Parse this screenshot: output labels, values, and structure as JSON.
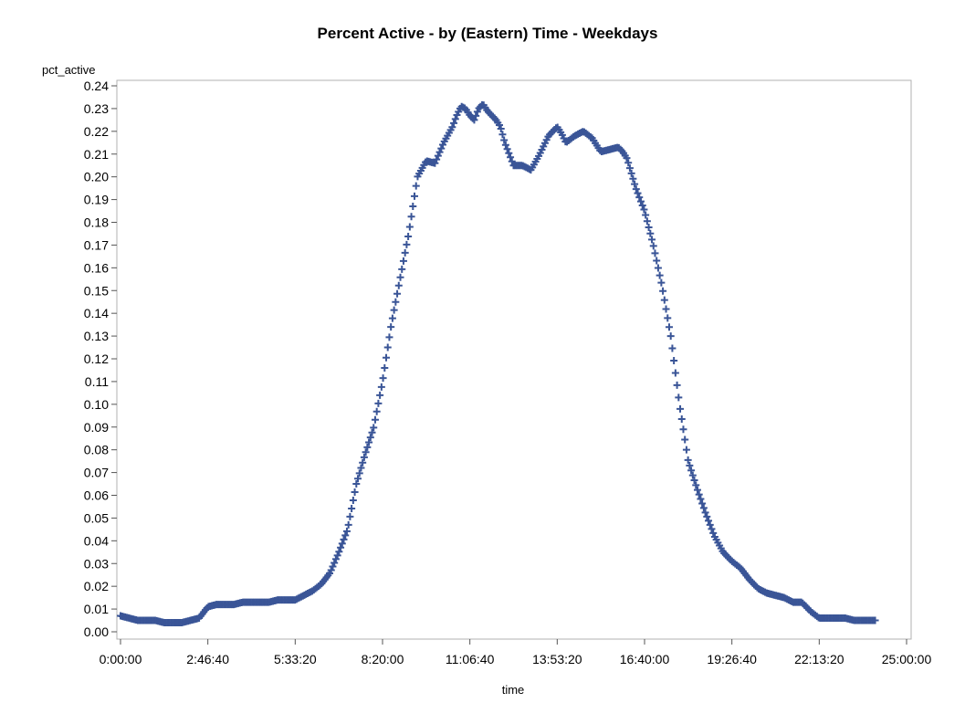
{
  "chart_data": {
    "type": "scatter",
    "title": "Percent Active - by (Eastern) Time - Weekdays",
    "xlabel": "time",
    "ylabel": "pct_active",
    "xlim": [
      0,
      90000
    ],
    "ylim": [
      0,
      0.24
    ],
    "x_ticks": [
      {
        "value": 0,
        "label": "0:00:00"
      },
      {
        "value": 10000,
        "label": "2:46:40"
      },
      {
        "value": 20000,
        "label": "5:33:20"
      },
      {
        "value": 30000,
        "label": "8:20:00"
      },
      {
        "value": 40000,
        "label": "11:06:40"
      },
      {
        "value": 50000,
        "label": "13:53:20"
      },
      {
        "value": 60000,
        "label": "16:40:00"
      },
      {
        "value": 70000,
        "label": "19:26:40"
      },
      {
        "value": 80000,
        "label": "22:13:20"
      },
      {
        "value": 90000,
        "label": "25:00:00"
      }
    ],
    "y_ticks": [
      "0.00",
      "0.01",
      "0.02",
      "0.03",
      "0.04",
      "0.05",
      "0.06",
      "0.07",
      "0.08",
      "0.09",
      "0.10",
      "0.11",
      "0.12",
      "0.13",
      "0.14",
      "0.15",
      "0.16",
      "0.17",
      "0.18",
      "0.19",
      "0.20",
      "0.21",
      "0.22",
      "0.23",
      "0.24"
    ],
    "marker": "plus",
    "marker_color": "#3a5597",
    "grid": false,
    "legend": "none",
    "series": [
      {
        "x": [
          0,
          1000,
          2000,
          3000,
          4000,
          5000,
          6000,
          7000,
          8000,
          9000,
          10000,
          11000,
          12000,
          13000,
          14000,
          15000,
          16000,
          17000,
          18000,
          19000,
          20000,
          21000,
          22000,
          23000,
          24000,
          25000,
          26000,
          27000,
          28000,
          29000,
          30000,
          31000,
          32000,
          33000,
          34000,
          35000,
          36000,
          37000,
          38000,
          38500,
          39000,
          39500,
          40000,
          40500,
          41000,
          41500,
          42000,
          42500,
          43000,
          43500,
          44000,
          45000,
          46000,
          47000,
          48000,
          49000,
          50000,
          50500,
          51000,
          52000,
          53000,
          54000,
          55000,
          56000,
          57000,
          57500,
          58000,
          59000,
          60000,
          61000,
          62000,
          63000,
          64000,
          65000,
          66000,
          67000,
          68000,
          69000,
          70000,
          71000,
          72000,
          73000,
          74000,
          75000,
          76000,
          77000,
          78000,
          79000,
          80000,
          81000,
          82000,
          83000,
          84000,
          85000,
          86000,
          86400
        ],
        "y": [
          0.007,
          0.006,
          0.005,
          0.005,
          0.005,
          0.004,
          0.004,
          0.004,
          0.005,
          0.006,
          0.011,
          0.012,
          0.012,
          0.012,
          0.013,
          0.013,
          0.013,
          0.013,
          0.014,
          0.014,
          0.014,
          0.016,
          0.018,
          0.021,
          0.026,
          0.035,
          0.045,
          0.065,
          0.078,
          0.09,
          0.11,
          0.135,
          0.155,
          0.175,
          0.2,
          0.207,
          0.206,
          0.215,
          0.222,
          0.227,
          0.231,
          0.23,
          0.227,
          0.225,
          0.23,
          0.232,
          0.229,
          0.227,
          0.225,
          0.222,
          0.215,
          0.205,
          0.205,
          0.203,
          0.21,
          0.218,
          0.222,
          0.219,
          0.215,
          0.218,
          0.22,
          0.217,
          0.211,
          0.212,
          0.213,
          0.211,
          0.208,
          0.195,
          0.185,
          0.17,
          0.152,
          0.13,
          0.1,
          0.075,
          0.063,
          0.052,
          0.042,
          0.035,
          0.031,
          0.028,
          0.023,
          0.019,
          0.017,
          0.016,
          0.015,
          0.013,
          0.013,
          0.009,
          0.006,
          0.006,
          0.006,
          0.006,
          0.005,
          0.005,
          0.005,
          0.005
        ]
      }
    ]
  }
}
